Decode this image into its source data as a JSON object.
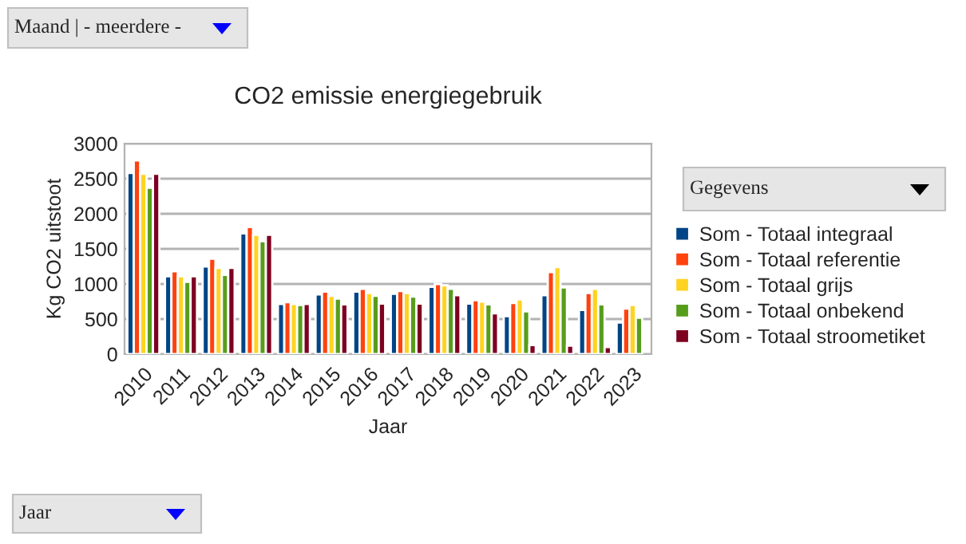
{
  "chart_data": {
    "type": "bar",
    "title": "CO2 emissie energiegebruik",
    "xlabel": "Jaar",
    "ylabel": "Kg CO2 uitstoot",
    "categories": [
      "2010",
      "2011",
      "2012",
      "2013",
      "2014",
      "2015",
      "2016",
      "2017",
      "2018",
      "2019",
      "2020",
      "2021",
      "2022",
      "2023"
    ],
    "series": [
      {
        "name": "Som - Totaal integraal",
        "color": "#004586",
        "values": [
          2580,
          1110,
          1250,
          1720,
          715,
          850,
          890,
          860,
          960,
          720,
          540,
          840,
          630,
          450
        ]
      },
      {
        "name": "Som - Totaal referentie",
        "color": "#ff420e",
        "values": [
          2760,
          1180,
          1360,
          1810,
          740,
          890,
          930,
          900,
          1000,
          770,
          730,
          1170,
          870,
          650
        ]
      },
      {
        "name": "Som - Totaal grijs",
        "color": "#ffd320",
        "values": [
          2570,
          1110,
          1230,
          1700,
          715,
          830,
          870,
          870,
          980,
          750,
          780,
          1240,
          930,
          700
        ]
      },
      {
        "name": "Som - Totaal onbekend",
        "color": "#579d1c",
        "values": [
          2370,
          1030,
          1130,
          1610,
          700,
          790,
          830,
          820,
          930,
          710,
          610,
          950,
          710,
          520
        ]
      },
      {
        "name": "Som - Totaal stroometiket",
        "color": "#7e0021",
        "values": [
          2570,
          1110,
          1230,
          1700,
          715,
          710,
          720,
          720,
          840,
          580,
          130,
          120,
          100,
          null
        ]
      }
    ],
    "ylim": [
      0,
      3000
    ],
    "yticks": [
      0,
      500,
      1000,
      1500,
      2000,
      2500,
      3000
    ],
    "grid": "y",
    "legend": "right",
    "annotations": [
      "Maand | - meerdere -",
      "Gegevens",
      "Jaar"
    ]
  }
}
